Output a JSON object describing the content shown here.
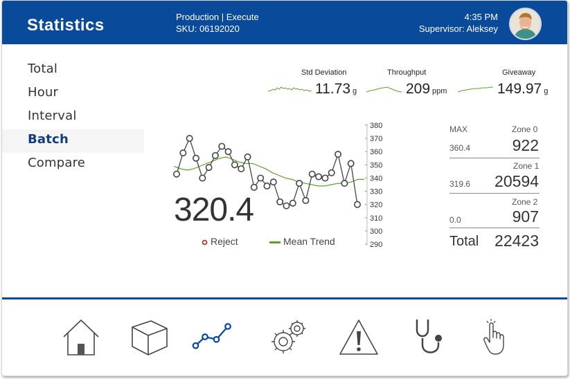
{
  "header": {
    "title": "Statistics",
    "context_line1": "Production | Execute",
    "context_line2": "SKU: 06192020",
    "time": "4:35 PM",
    "supervisor": "Supervisor: Aleksey",
    "avatar_icon": "user-avatar-photo"
  },
  "nav": {
    "items": [
      {
        "label": "Total"
      },
      {
        "label": "Hour"
      },
      {
        "label": "Interval"
      },
      {
        "label": "Batch",
        "active": true
      },
      {
        "label": "Compare"
      }
    ]
  },
  "metrics": {
    "std_deviation": {
      "label": "Std Deviation",
      "value": "11.73",
      "unit": "g"
    },
    "throughput": {
      "label": "Throughput",
      "value": "209",
      "unit": "ppm"
    },
    "giveaway": {
      "label": "Giveaway",
      "value": "149.97",
      "unit": "g"
    }
  },
  "current_value": "320.4",
  "legend": {
    "reject": "Reject",
    "mean_trend": "Mean Trend"
  },
  "chart_data": {
    "type": "line",
    "yaxis_ticks": [
      "380",
      "370",
      "360",
      "350",
      "340",
      "330",
      "320",
      "310",
      "300",
      "290"
    ],
    "ylim": [
      290,
      380
    ],
    "series": [
      {
        "name": "",
        "values": [
          343,
          359,
          370,
          355,
          340,
          348,
          357,
          364,
          360,
          350,
          347,
          356,
          333,
          340,
          334,
          337,
          322,
          319,
          321,
          336,
          323,
          343,
          341,
          340,
          344,
          358,
          336,
          351,
          320
        ]
      },
      {
        "name": "Mean Trend",
        "values": [
          349,
          347,
          346,
          347,
          349,
          351,
          353,
          355,
          356,
          354,
          352,
          351,
          351,
          349,
          347,
          344,
          342,
          340,
          339,
          337,
          336,
          335,
          334,
          334,
          335,
          336,
          336,
          337,
          339,
          339
        ]
      }
    ],
    "colors": {
      "points": "#333333",
      "trend": "#5aa02c",
      "reject": "#b22222"
    }
  },
  "zones": {
    "max_label": "MAX",
    "rows": [
      {
        "name": "Zone 0",
        "max": "360.4",
        "count": "922"
      },
      {
        "name": "Zone 1",
        "max": "319.6",
        "count": "20594"
      },
      {
        "name": "Zone 2",
        "max": "0.0",
        "count": "907"
      }
    ],
    "total_label": "Total",
    "total_value": "22423"
  },
  "toolbar": {
    "icons": [
      "home-icon",
      "package-icon",
      "statistics-icon",
      "settings-icon",
      "warning-icon",
      "diagnostics-icon",
      "manual-touch-icon"
    ],
    "active": "statistics-icon"
  },
  "colors": {
    "brand": "#0a4a9b",
    "active_nav": "#123d80",
    "trend": "#5aa02c",
    "reject": "#b22222"
  }
}
